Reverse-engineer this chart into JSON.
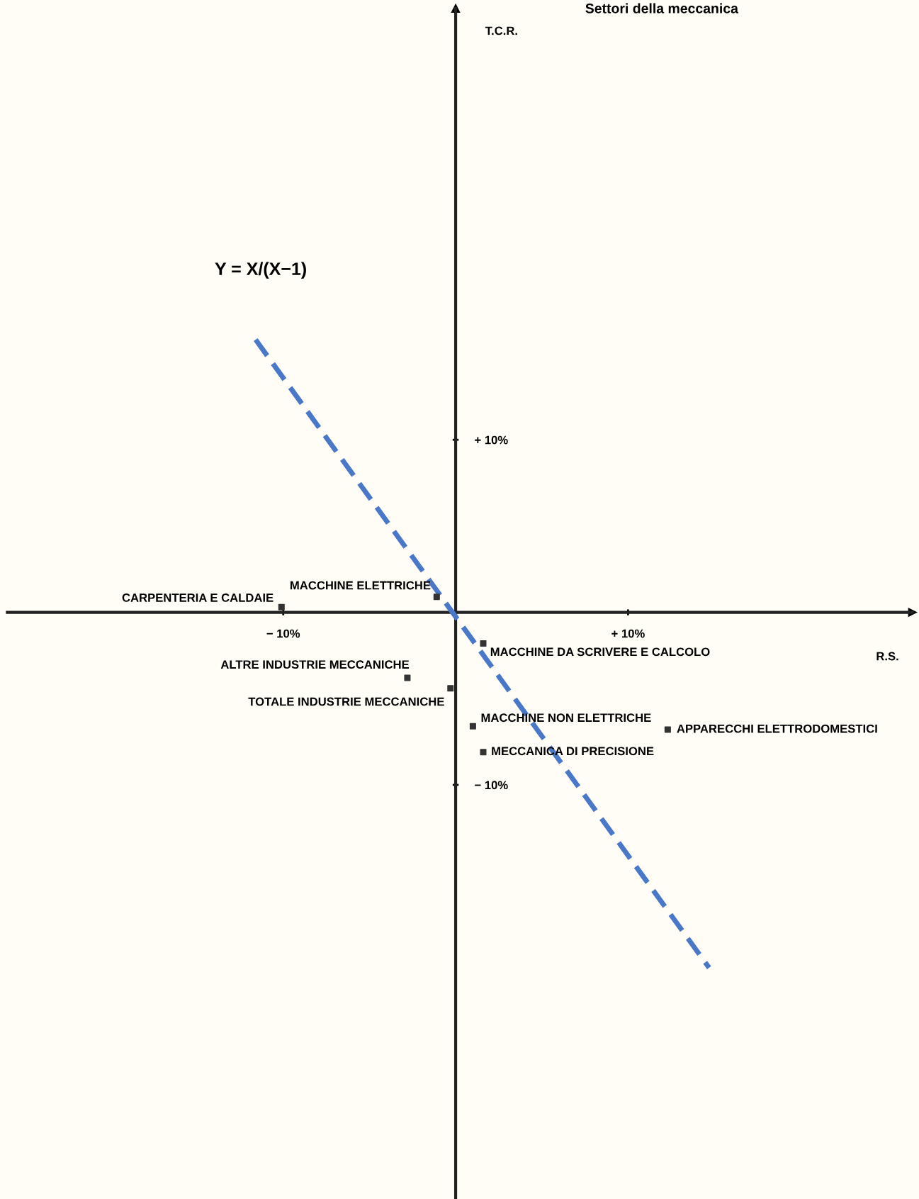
{
  "chart_data": {
    "type": "scatter",
    "title": "Settori della meccanica",
    "xlabel": "R.S.",
    "ylabel": "T.C.R.",
    "xlim": [
      -26,
      26.5
    ],
    "ylim": [
      -34,
      35
    ],
    "xticks": [
      {
        "value": -10,
        "label": "− 10%"
      },
      {
        "value": 10,
        "label": "+ 10%"
      }
    ],
    "yticks": [
      {
        "value": 10,
        "label": "+ 10%"
      },
      {
        "value": -10,
        "label": "− 10%"
      }
    ],
    "grid": false,
    "legend": false,
    "series": [
      {
        "marker": "square",
        "color": "#333333",
        "x": [
          -10.1,
          -1.1,
          -2.8,
          -0.3,
          1.6,
          1.0,
          12.3,
          1.6
        ],
        "values": [
          0.3,
          0.9,
          -3.8,
          -4.4,
          -1.8,
          -6.6,
          -6.8,
          -8.1
        ]
      },
      {
        "type": "line",
        "color": "#4a78c8",
        "line_style": "dashed",
        "x": [
          -11.6,
          14.7
        ],
        "values": [
          15.8,
          -20.6
        ]
      }
    ],
    "annotations": [
      {
        "text": "CARPENTERIA E CALDAIE",
        "x": -10.1,
        "y": 0.3
      },
      {
        "text": "MACCHINE ELETTRICHE",
        "x": -1.1,
        "y": 0.9
      },
      {
        "text": "ALTRE INDUSTRIE MECCANICHE",
        "x": -2.8,
        "y": -3.8
      },
      {
        "text": "TOTALE INDUSTRIE MECCANICHE",
        "x": -0.3,
        "y": -4.4
      },
      {
        "text": "MACCHINE DA SCRIVERE E CALCOLO",
        "x": 1.6,
        "y": -1.8
      },
      {
        "text": "MACCHINE NON ELETTRICHE",
        "x": 1.0,
        "y": -6.6
      },
      {
        "text": "APPARECCHI ELETTRODOMESTICI",
        "x": 12.3,
        "y": -6.8
      },
      {
        "text": "MECCANICA DI PRECISIONE",
        "x": 1.6,
        "y": -8.1
      },
      "Y = X/(X−1)"
    ]
  }
}
